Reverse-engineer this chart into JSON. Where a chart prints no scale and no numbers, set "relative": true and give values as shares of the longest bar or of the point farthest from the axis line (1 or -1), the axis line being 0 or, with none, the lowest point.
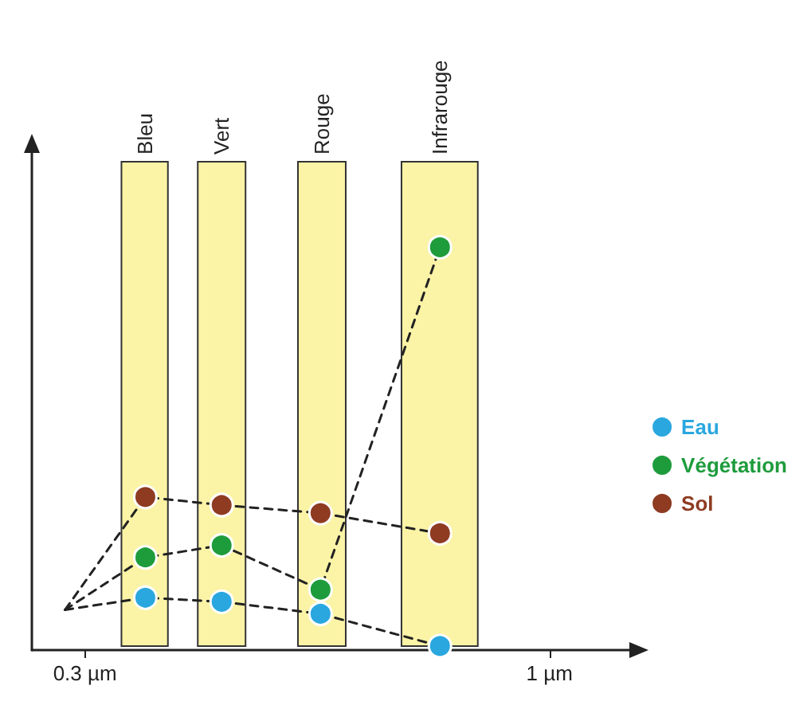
{
  "chart_data": {
    "type": "line",
    "relative": true,
    "x": [
      0.27,
      0.391,
      0.506,
      0.655,
      0.835
    ],
    "series": [
      {
        "name": "Eau",
        "color": "#2aa7df",
        "values": [
          0.1,
          0.13,
          0.12,
          0.09,
          0.01
        ]
      },
      {
        "name": "Végétation",
        "color": "#1e9c3c",
        "values": [
          0.1,
          0.23,
          0.26,
          0.15,
          1
        ]
      },
      {
        "name": "Sol",
        "color": "#8e3b22",
        "values": [
          0.1,
          0.38,
          0.36,
          0.34,
          0.29
        ]
      }
    ],
    "xlim": [
      0.22,
      1.13
    ],
    "xticks": [
      {
        "value": 0.3,
        "label": "0.3 µm"
      },
      {
        "value": 1,
        "label": "1 µm"
      }
    ],
    "bands": [
      {
        "axis": "x",
        "from": 0.355,
        "to": 0.425,
        "label": "Bleu",
        "color": "#fbf3a6"
      },
      {
        "axis": "x",
        "from": 0.47,
        "to": 0.542,
        "label": "Vert",
        "color": "#fbf3a6"
      },
      {
        "axis": "x",
        "from": 0.621,
        "to": 0.693,
        "label": "Rouge",
        "color": "#fbf3a6"
      },
      {
        "axis": "x",
        "from": 0.777,
        "to": 0.892,
        "label": "Infrarouge",
        "color": "#fbf3a6"
      }
    ],
    "marker": "circle",
    "line_style": "dashed",
    "legend": "right",
    "grid": false
  }
}
